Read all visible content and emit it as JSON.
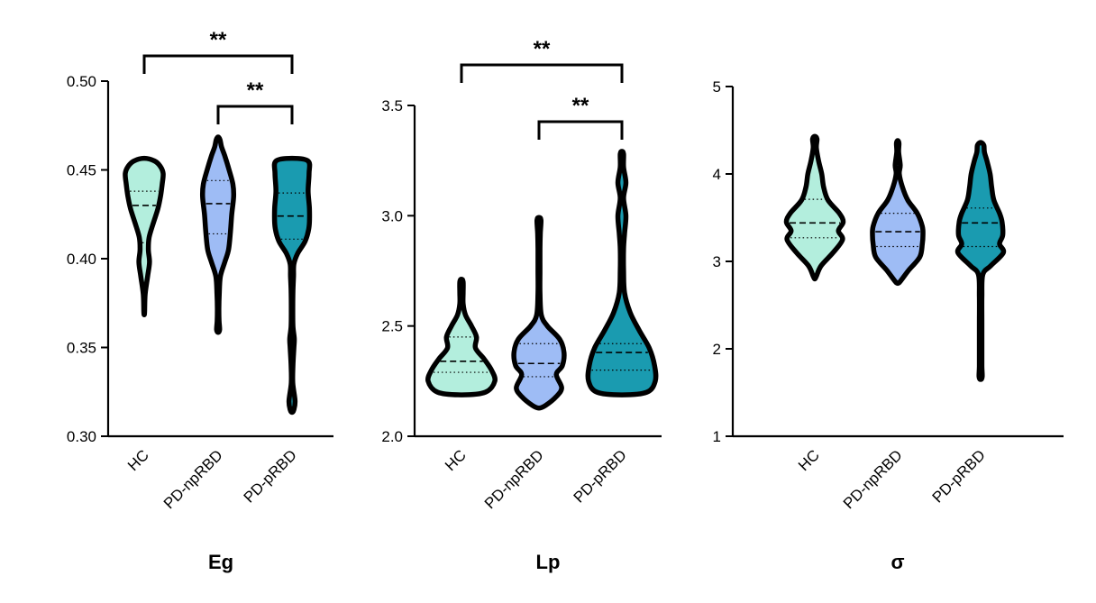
{
  "chart_data": [
    {
      "type": "violin",
      "title": "Eg",
      "ylim": [
        0.3,
        0.5
      ],
      "yticks": [
        0.3,
        0.35,
        0.4,
        0.45,
        0.5
      ],
      "ytick_labels": [
        "0.30",
        "0.35",
        "0.40",
        "0.45",
        "0.50"
      ],
      "categories": [
        "HC",
        "PD-npRBD",
        "PD-pRBD"
      ],
      "colors": [
        "#b3eedd",
        "#9ebcf5",
        "#1a9bb0"
      ],
      "violins": [
        {
          "name": "HC",
          "min": 0.37,
          "max": 0.455,
          "q1": 0.409,
          "median": 0.43,
          "q3": 0.438,
          "profile": [
            [
              0.37,
              0.02
            ],
            [
              0.38,
              0.05
            ],
            [
              0.39,
              0.18
            ],
            [
              0.398,
              0.28
            ],
            [
              0.405,
              0.22
            ],
            [
              0.412,
              0.26
            ],
            [
              0.42,
              0.48
            ],
            [
              0.428,
              0.72
            ],
            [
              0.435,
              0.86
            ],
            [
              0.442,
              0.95
            ],
            [
              0.448,
              1.0
            ],
            [
              0.452,
              0.85
            ],
            [
              0.455,
              0.55
            ]
          ]
        },
        {
          "name": "PD-npRBD",
          "min": 0.36,
          "max": 0.467,
          "q1": 0.414,
          "median": 0.431,
          "q3": 0.444,
          "profile": [
            [
              0.36,
              0.08
            ],
            [
              0.365,
              0.05
            ],
            [
              0.372,
              0.04
            ],
            [
              0.38,
              0.06
            ],
            [
              0.39,
              0.12
            ],
            [
              0.398,
              0.35
            ],
            [
              0.405,
              0.55
            ],
            [
              0.415,
              0.65
            ],
            [
              0.425,
              0.72
            ],
            [
              0.435,
              0.82
            ],
            [
              0.442,
              0.78
            ],
            [
              0.45,
              0.58
            ],
            [
              0.458,
              0.35
            ],
            [
              0.463,
              0.18
            ],
            [
              0.467,
              0.1
            ]
          ]
        },
        {
          "name": "PD-pRBD",
          "min": 0.315,
          "max": 0.455,
          "q1": 0.411,
          "median": 0.424,
          "q3": 0.437,
          "profile": [
            [
              0.315,
              0.1
            ],
            [
              0.32,
              0.16
            ],
            [
              0.33,
              0.04
            ],
            [
              0.34,
              0.05
            ],
            [
              0.35,
              0.1
            ],
            [
              0.355,
              0.12
            ],
            [
              0.362,
              0.05
            ],
            [
              0.372,
              0.04
            ],
            [
              0.382,
              0.05
            ],
            [
              0.39,
              0.08
            ],
            [
              0.397,
              0.1
            ],
            [
              0.403,
              0.3
            ],
            [
              0.41,
              0.7
            ],
            [
              0.418,
              0.9
            ],
            [
              0.428,
              0.92
            ],
            [
              0.438,
              0.85
            ],
            [
              0.448,
              0.9
            ],
            [
              0.455,
              0.85
            ]
          ]
        }
      ],
      "significance": [
        {
          "from": "HC",
          "to": "PD-pRBD",
          "label": "**"
        },
        {
          "from": "PD-npRBD",
          "to": "PD-pRBD",
          "label": "**"
        }
      ]
    },
    {
      "type": "violin",
      "title": "Lp",
      "ylim": [
        2.0,
        3.5
      ],
      "yticks": [
        2.0,
        2.5,
        3.0,
        3.5
      ],
      "ytick_labels": [
        "2.0",
        "2.5",
        "3.0",
        "3.5"
      ],
      "categories": [
        "HC",
        "PD-npRBD",
        "PD-pRBD"
      ],
      "colors": [
        "#b3eedd",
        "#9ebcf5",
        "#1a9bb0"
      ],
      "violins": [
        {
          "name": "HC",
          "min": 2.2,
          "max": 2.7,
          "q1": 2.29,
          "median": 2.34,
          "q3": 2.45,
          "profile": [
            [
              2.2,
              0.72
            ],
            [
              2.25,
              1.0
            ],
            [
              2.3,
              0.9
            ],
            [
              2.35,
              0.68
            ],
            [
              2.4,
              0.42
            ],
            [
              2.45,
              0.45
            ],
            [
              2.5,
              0.3
            ],
            [
              2.55,
              0.12
            ],
            [
              2.6,
              0.05
            ],
            [
              2.65,
              0.05
            ],
            [
              2.7,
              0.05
            ]
          ]
        },
        {
          "name": "PD-npRBD",
          "min": 2.14,
          "max": 2.98,
          "q1": 2.27,
          "median": 2.33,
          "q3": 2.42,
          "profile": [
            [
              2.14,
              0.2
            ],
            [
              2.18,
              0.52
            ],
            [
              2.22,
              0.68
            ],
            [
              2.28,
              0.52
            ],
            [
              2.32,
              0.7
            ],
            [
              2.38,
              0.75
            ],
            [
              2.44,
              0.62
            ],
            [
              2.5,
              0.25
            ],
            [
              2.55,
              0.07
            ],
            [
              2.65,
              0.03
            ],
            [
              2.75,
              0.03
            ],
            [
              2.85,
              0.03
            ],
            [
              2.92,
              0.04
            ],
            [
              2.98,
              0.06
            ]
          ]
        },
        {
          "name": "PD-pRBD",
          "min": 2.2,
          "max": 3.28,
          "q1": 2.3,
          "median": 2.38,
          "q3": 2.42,
          "profile": [
            [
              2.2,
              0.75
            ],
            [
              2.25,
              1.0
            ],
            [
              2.32,
              0.98
            ],
            [
              2.4,
              0.82
            ],
            [
              2.48,
              0.52
            ],
            [
              2.56,
              0.25
            ],
            [
              2.65,
              0.08
            ],
            [
              2.75,
              0.05
            ],
            [
              2.85,
              0.05
            ],
            [
              2.92,
              0.08
            ],
            [
              3.0,
              0.12
            ],
            [
              3.08,
              0.05
            ],
            [
              3.15,
              0.12
            ],
            [
              3.22,
              0.05
            ],
            [
              3.28,
              0.05
            ]
          ]
        }
      ],
      "significance": [
        {
          "from": "HC",
          "to": "PD-pRBD",
          "label": "**"
        },
        {
          "from": "PD-npRBD",
          "to": "PD-pRBD",
          "label": "**"
        }
      ]
    },
    {
      "type": "violin",
      "title": "σ",
      "ylim": [
        1,
        5
      ],
      "yticks": [
        1,
        2,
        3,
        4,
        5
      ],
      "ytick_labels": [
        "1",
        "2",
        "3",
        "4",
        "5"
      ],
      "categories": [
        "HC",
        "PD-npRBD",
        "PD-pRBD"
      ],
      "colors": [
        "#b3eedd",
        "#9ebcf5",
        "#1a9bb0"
      ],
      "violins": [
        {
          "name": "HC",
          "min": 2.83,
          "max": 4.4,
          "q1": 3.27,
          "median": 3.44,
          "q3": 3.71,
          "profile": [
            [
              2.83,
              0.05
            ],
            [
              2.95,
              0.2
            ],
            [
              3.1,
              0.58
            ],
            [
              3.25,
              0.88
            ],
            [
              3.35,
              0.75
            ],
            [
              3.45,
              0.9
            ],
            [
              3.55,
              0.78
            ],
            [
              3.7,
              0.42
            ],
            [
              3.85,
              0.28
            ],
            [
              4.0,
              0.22
            ],
            [
              4.15,
              0.12
            ],
            [
              4.3,
              0.05
            ],
            [
              4.4,
              0.07
            ]
          ]
        },
        {
          "name": "PD-npRBD",
          "min": 2.78,
          "max": 4.35,
          "q1": 3.17,
          "median": 3.34,
          "q3": 3.55,
          "profile": [
            [
              2.78,
              0.1
            ],
            [
              2.9,
              0.35
            ],
            [
              3.05,
              0.7
            ],
            [
              3.2,
              0.78
            ],
            [
              3.3,
              0.8
            ],
            [
              3.4,
              0.78
            ],
            [
              3.55,
              0.62
            ],
            [
              3.7,
              0.32
            ],
            [
              3.85,
              0.15
            ],
            [
              4.0,
              0.05
            ],
            [
              4.1,
              0.08
            ],
            [
              4.25,
              0.03
            ],
            [
              4.35,
              0.04
            ]
          ]
        },
        {
          "name": "PD-pRBD",
          "min": 1.68,
          "max": 4.33,
          "q1": 3.17,
          "median": 3.44,
          "q3": 3.61,
          "profile": [
            [
              1.68,
              0.05
            ],
            [
              1.8,
              0.04
            ],
            [
              2.0,
              0.04
            ],
            [
              2.3,
              0.04
            ],
            [
              2.6,
              0.04
            ],
            [
              2.85,
              0.07
            ],
            [
              2.95,
              0.32
            ],
            [
              3.1,
              0.72
            ],
            [
              3.2,
              0.6
            ],
            [
              3.3,
              0.7
            ],
            [
              3.45,
              0.68
            ],
            [
              3.55,
              0.6
            ],
            [
              3.7,
              0.42
            ],
            [
              3.85,
              0.35
            ],
            [
              4.0,
              0.3
            ],
            [
              4.15,
              0.2
            ],
            [
              4.25,
              0.12
            ],
            [
              4.33,
              0.1
            ]
          ]
        }
      ],
      "significance": []
    }
  ]
}
